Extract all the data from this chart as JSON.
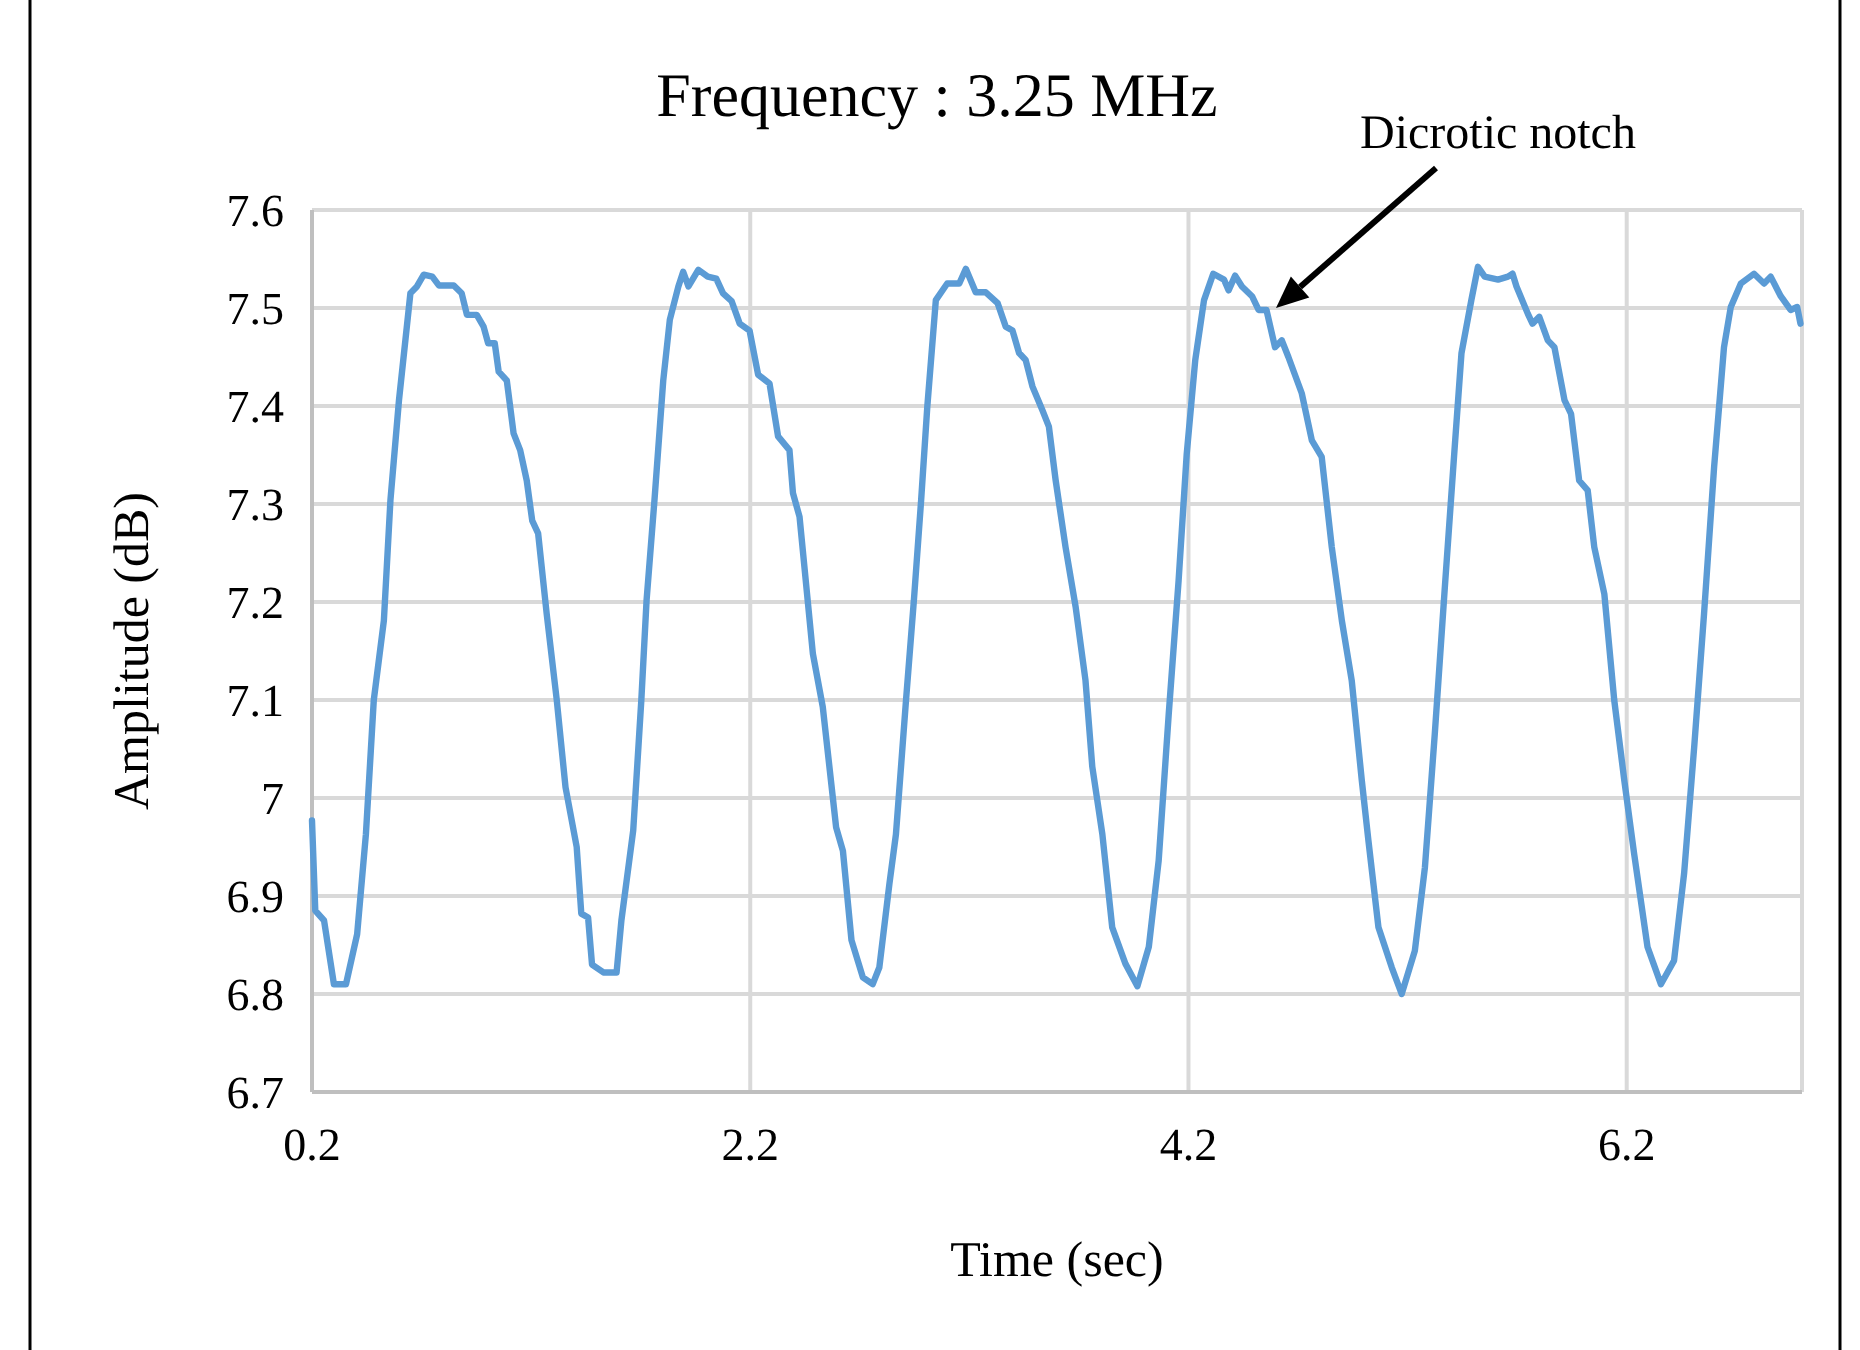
{
  "chart_data": {
    "type": "line",
    "title": "Frequency : 3.25 MHz",
    "xlabel": "Time (sec)",
    "ylabel": "Amplitude (dB)",
    "xlim": [
      0.2,
      7.0
    ],
    "xticks": [
      0.2,
      2.2,
      4.2,
      6.2
    ],
    "ylim": [
      6.7,
      7.6
    ],
    "yticks": [
      6.7,
      6.8,
      6.9,
      7,
      7.1,
      7.2,
      7.3,
      7.4,
      7.5,
      7.6
    ],
    "grid": true,
    "line_style": "solid",
    "marker": "none",
    "annotations": [
      "Dicrotic notch"
    ],
    "series": [
      {
        "color": "#5b9bd5",
        "x": [
          0.2,
          0.215,
          0.255,
          0.3,
          0.355,
          0.406,
          0.446,
          0.482,
          0.528,
          0.558,
          0.597,
          0.649,
          0.679,
          0.71,
          0.749,
          0.779,
          0.847,
          0.883,
          0.907,
          0.952,
          0.983,
          1.004,
          1.034,
          1.052,
          1.089,
          1.12,
          1.15,
          1.18,
          1.205,
          1.232,
          1.271,
          1.317,
          1.357,
          1.408,
          1.429,
          1.46,
          1.478,
          1.53,
          1.59,
          1.612,
          1.666,
          1.703,
          1.727,
          1.763,
          1.803,
          1.833,
          1.872,
          1.894,
          1.918,
          1.963,
          2.006,
          2.045,
          2.076,
          2.115,
          2.152,
          2.197,
          2.236,
          2.288,
          2.327,
          2.379,
          2.395,
          2.425,
          2.486,
          2.531,
          2.592,
          2.623,
          2.662,
          2.714,
          2.759,
          2.789,
          2.835,
          2.865,
          2.911,
          2.947,
          2.98,
          3.008,
          3.047,
          3.099,
          3.154,
          3.184,
          3.229,
          3.275,
          3.329,
          3.366,
          3.397,
          3.427,
          3.457,
          3.488,
          3.533,
          3.563,
          3.594,
          3.639,
          3.685,
          3.73,
          3.761,
          3.807,
          3.852,
          3.912,
          3.967,
          4.019,
          4.064,
          4.11,
          4.155,
          4.192,
          4.231,
          4.271,
          4.313,
          4.362,
          4.383,
          4.413,
          4.444,
          4.49,
          4.52,
          4.556,
          4.595,
          4.626,
          4.656,
          4.717,
          4.763,
          4.808,
          4.854,
          4.9,
          4.945,
          4.991,
          5.021,
          5.067,
          5.128,
          5.173,
          5.233,
          5.279,
          5.324,
          5.37,
          5.415,
          5.446,
          5.491,
          5.521,
          5.552,
          5.613,
          5.658,
          5.679,
          5.697,
          5.749,
          5.77,
          5.801,
          5.84,
          5.87,
          5.916,
          5.946,
          5.983,
          6.022,
          6.052,
          6.098,
          6.143,
          6.189,
          6.234,
          6.295,
          6.356,
          6.416,
          6.462,
          6.508,
          6.553,
          6.599,
          6.644,
          6.675,
          6.721,
          6.781,
          6.827,
          6.857,
          6.903,
          6.948,
          6.978,
          6.993
        ],
        "values": [
          6.977,
          6.885,
          6.875,
          6.81,
          6.81,
          6.861,
          6.963,
          7.1,
          7.181,
          7.304,
          7.406,
          7.515,
          7.522,
          7.534,
          7.532,
          7.523,
          7.523,
          7.515,
          7.493,
          7.493,
          7.481,
          7.464,
          7.464,
          7.435,
          7.426,
          7.372,
          7.355,
          7.324,
          7.283,
          7.27,
          7.188,
          7.1,
          7.011,
          6.95,
          6.882,
          6.878,
          6.83,
          6.822,
          6.822,
          6.875,
          6.967,
          7.1,
          7.202,
          7.304,
          7.426,
          7.488,
          7.522,
          7.537,
          7.522,
          7.539,
          7.532,
          7.53,
          7.515,
          7.507,
          7.484,
          7.477,
          7.432,
          7.423,
          7.369,
          7.355,
          7.311,
          7.287,
          7.147,
          7.093,
          6.97,
          6.946,
          6.855,
          6.817,
          6.81,
          6.827,
          6.912,
          6.963,
          7.1,
          7.202,
          7.304,
          7.399,
          7.508,
          7.525,
          7.525,
          7.54,
          7.516,
          7.516,
          7.505,
          7.481,
          7.477,
          7.454,
          7.447,
          7.42,
          7.396,
          7.379,
          7.324,
          7.256,
          7.195,
          7.12,
          7.032,
          6.963,
          6.868,
          6.831,
          6.808,
          6.848,
          6.936,
          7.086,
          7.222,
          7.351,
          7.447,
          7.508,
          7.535,
          7.529,
          7.518,
          7.533,
          7.522,
          7.512,
          7.498,
          7.498,
          7.46,
          7.467,
          7.45,
          7.413,
          7.365,
          7.348,
          7.256,
          7.181,
          7.12,
          7.018,
          6.957,
          6.868,
          6.827,
          6.8,
          6.844,
          6.929,
          7.065,
          7.215,
          7.358,
          7.454,
          7.508,
          7.542,
          7.532,
          7.529,
          7.532,
          7.535,
          7.522,
          7.494,
          7.484,
          7.491,
          7.467,
          7.46,
          7.406,
          7.392,
          7.324,
          7.314,
          7.256,
          7.208,
          7.1,
          7.018,
          6.943,
          6.848,
          6.81,
          6.834,
          6.923,
          7.052,
          7.188,
          7.338,
          7.46,
          7.501,
          7.525,
          7.535,
          7.525,
          7.532,
          7.512,
          7.498,
          7.501,
          7.484
        ]
      }
    ]
  }
}
